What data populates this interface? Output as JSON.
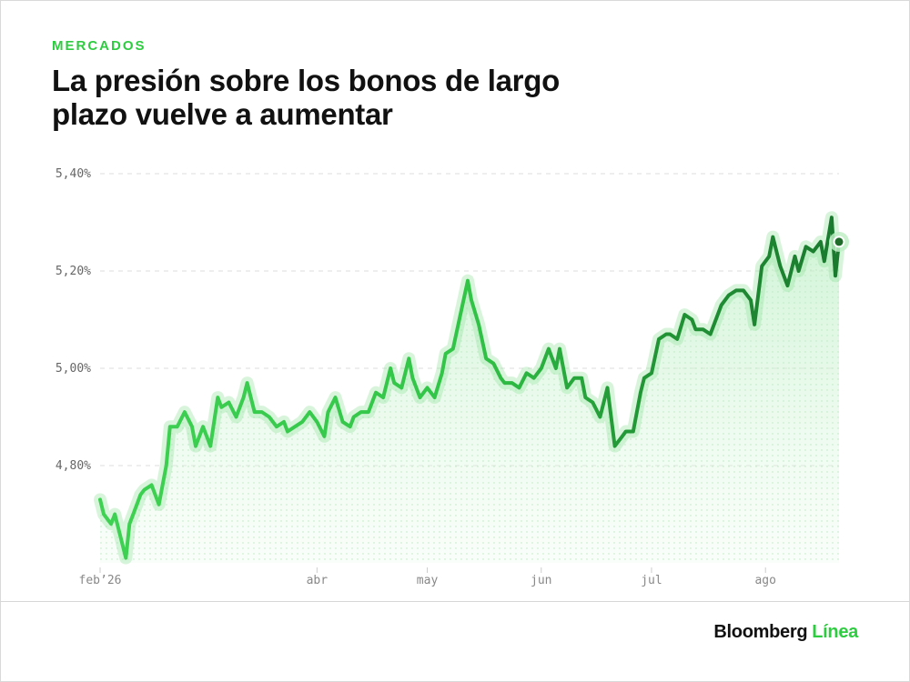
{
  "header": {
    "eyebrow": "MERCADOS",
    "title": "La presión sobre los bonos de largo plazo vuelve a aumentar"
  },
  "footer": {
    "brand_main": "Bloomberg",
    "brand_accent": "Línea"
  },
  "colors": {
    "accent": "#2ecc40",
    "line_light": "#33cc44",
    "line_dark": "#1a7a2e",
    "fill": "#c9f2cf"
  },
  "chart_data": {
    "type": "line",
    "title": "",
    "xlabel": "",
    "ylabel": "",
    "ylim": [
      4.6,
      5.4
    ],
    "y_ticks": [
      {
        "value": 4.8,
        "label": "4,80%"
      },
      {
        "value": 5.0,
        "label": "5,00%"
      },
      {
        "value": 5.2,
        "label": "5,20%"
      },
      {
        "value": 5.4,
        "label": "5,40%"
      }
    ],
    "x_ticks": [
      {
        "date": "2026-02-01",
        "label": "feb’26"
      },
      {
        "date": "2026-04-01",
        "label": "abr"
      },
      {
        "date": "2026-05-01",
        "label": "may"
      },
      {
        "date": "2026-06-01",
        "label": "jun"
      },
      {
        "date": "2026-07-01",
        "label": "jul"
      },
      {
        "date": "2026-08-01",
        "label": "ago"
      }
    ],
    "grid": true,
    "series": [
      {
        "x": [
          "2026-02-01",
          "2026-02-02",
          "2026-02-04",
          "2026-02-05",
          "2026-02-06",
          "2026-02-08",
          "2026-02-09",
          "2026-02-10",
          "2026-02-12",
          "2026-02-13",
          "2026-02-15",
          "2026-02-17",
          "2026-02-19",
          "2026-02-20",
          "2026-02-22",
          "2026-02-24",
          "2026-02-26",
          "2026-02-27",
          "2026-03-01",
          "2026-03-03",
          "2026-03-05",
          "2026-03-06",
          "2026-03-08",
          "2026-03-10",
          "2026-03-12",
          "2026-03-13",
          "2026-03-15",
          "2026-03-17",
          "2026-03-19",
          "2026-03-21",
          "2026-03-23",
          "2026-03-24",
          "2026-03-26",
          "2026-03-28",
          "2026-03-30",
          "2026-04-01",
          "2026-04-03",
          "2026-04-04",
          "2026-04-06",
          "2026-04-08",
          "2026-04-10",
          "2026-04-11",
          "2026-04-13",
          "2026-04-15",
          "2026-04-17",
          "2026-04-19",
          "2026-04-21",
          "2026-04-22",
          "2026-04-24",
          "2026-04-26",
          "2026-04-27",
          "2026-04-29",
          "2026-05-01",
          "2026-05-03",
          "2026-05-05",
          "2026-05-06",
          "2026-05-08",
          "2026-05-10",
          "2026-05-12",
          "2026-05-13",
          "2026-05-15",
          "2026-05-17",
          "2026-05-19",
          "2026-05-21",
          "2026-05-22",
          "2026-05-24",
          "2026-05-26",
          "2026-05-28",
          "2026-05-30",
          "2026-06-01",
          "2026-06-03",
          "2026-06-05",
          "2026-06-06",
          "2026-06-08",
          "2026-06-10",
          "2026-06-12",
          "2026-06-13",
          "2026-06-15",
          "2026-06-17",
          "2026-06-19",
          "2026-06-21",
          "2026-06-23",
          "2026-06-24",
          "2026-06-26",
          "2026-06-28",
          "2026-06-29",
          "2026-07-01",
          "2026-07-03",
          "2026-07-05",
          "2026-07-06",
          "2026-07-08",
          "2026-07-10",
          "2026-07-12",
          "2026-07-13",
          "2026-07-15",
          "2026-07-17",
          "2026-07-19",
          "2026-07-20",
          "2026-07-22",
          "2026-07-24",
          "2026-07-26",
          "2026-07-28",
          "2026-07-29",
          "2026-07-31",
          "2026-08-02",
          "2026-08-03",
          "2026-08-05",
          "2026-08-07",
          "2026-08-09",
          "2026-08-10",
          "2026-08-12",
          "2026-08-14",
          "2026-08-16",
          "2026-08-17",
          "2026-08-19",
          "2026-08-20"
        ],
        "values": [
          4.73,
          4.7,
          4.68,
          4.7,
          4.67,
          4.61,
          4.68,
          4.7,
          4.74,
          4.75,
          4.76,
          4.72,
          4.8,
          4.88,
          4.88,
          4.91,
          4.88,
          4.84,
          4.88,
          4.84,
          4.94,
          4.92,
          4.93,
          4.9,
          4.94,
          4.97,
          4.91,
          4.91,
          4.9,
          4.88,
          4.89,
          4.87,
          4.88,
          4.89,
          4.91,
          4.89,
          4.86,
          4.91,
          4.94,
          4.89,
          4.88,
          4.9,
          4.91,
          4.91,
          4.95,
          4.94,
          5.0,
          4.97,
          4.96,
          5.02,
          4.98,
          4.94,
          4.96,
          4.94,
          4.99,
          5.03,
          5.04,
          5.11,
          5.18,
          5.14,
          5.09,
          5.02,
          5.01,
          4.98,
          4.97,
          4.97,
          4.96,
          4.99,
          4.98,
          5.0,
          5.04,
          5.0,
          5.04,
          4.96,
          4.98,
          4.98,
          4.94,
          4.93,
          4.9,
          4.96,
          4.84,
          4.86,
          4.87,
          4.87,
          4.95,
          4.98,
          4.99,
          5.06,
          5.07,
          5.07,
          5.06,
          5.11,
          5.1,
          5.08,
          5.08,
          5.07,
          5.11,
          5.13,
          5.15,
          5.16,
          5.16,
          5.14,
          5.09,
          5.21,
          5.23,
          5.27,
          5.21,
          5.17,
          5.23,
          5.2,
          5.25,
          5.24,
          5.26,
          5.22,
          5.31,
          5.19
        ]
      }
    ],
    "last_value_marker": {
      "date": "2026-08-21",
      "value": 5.26
    }
  }
}
